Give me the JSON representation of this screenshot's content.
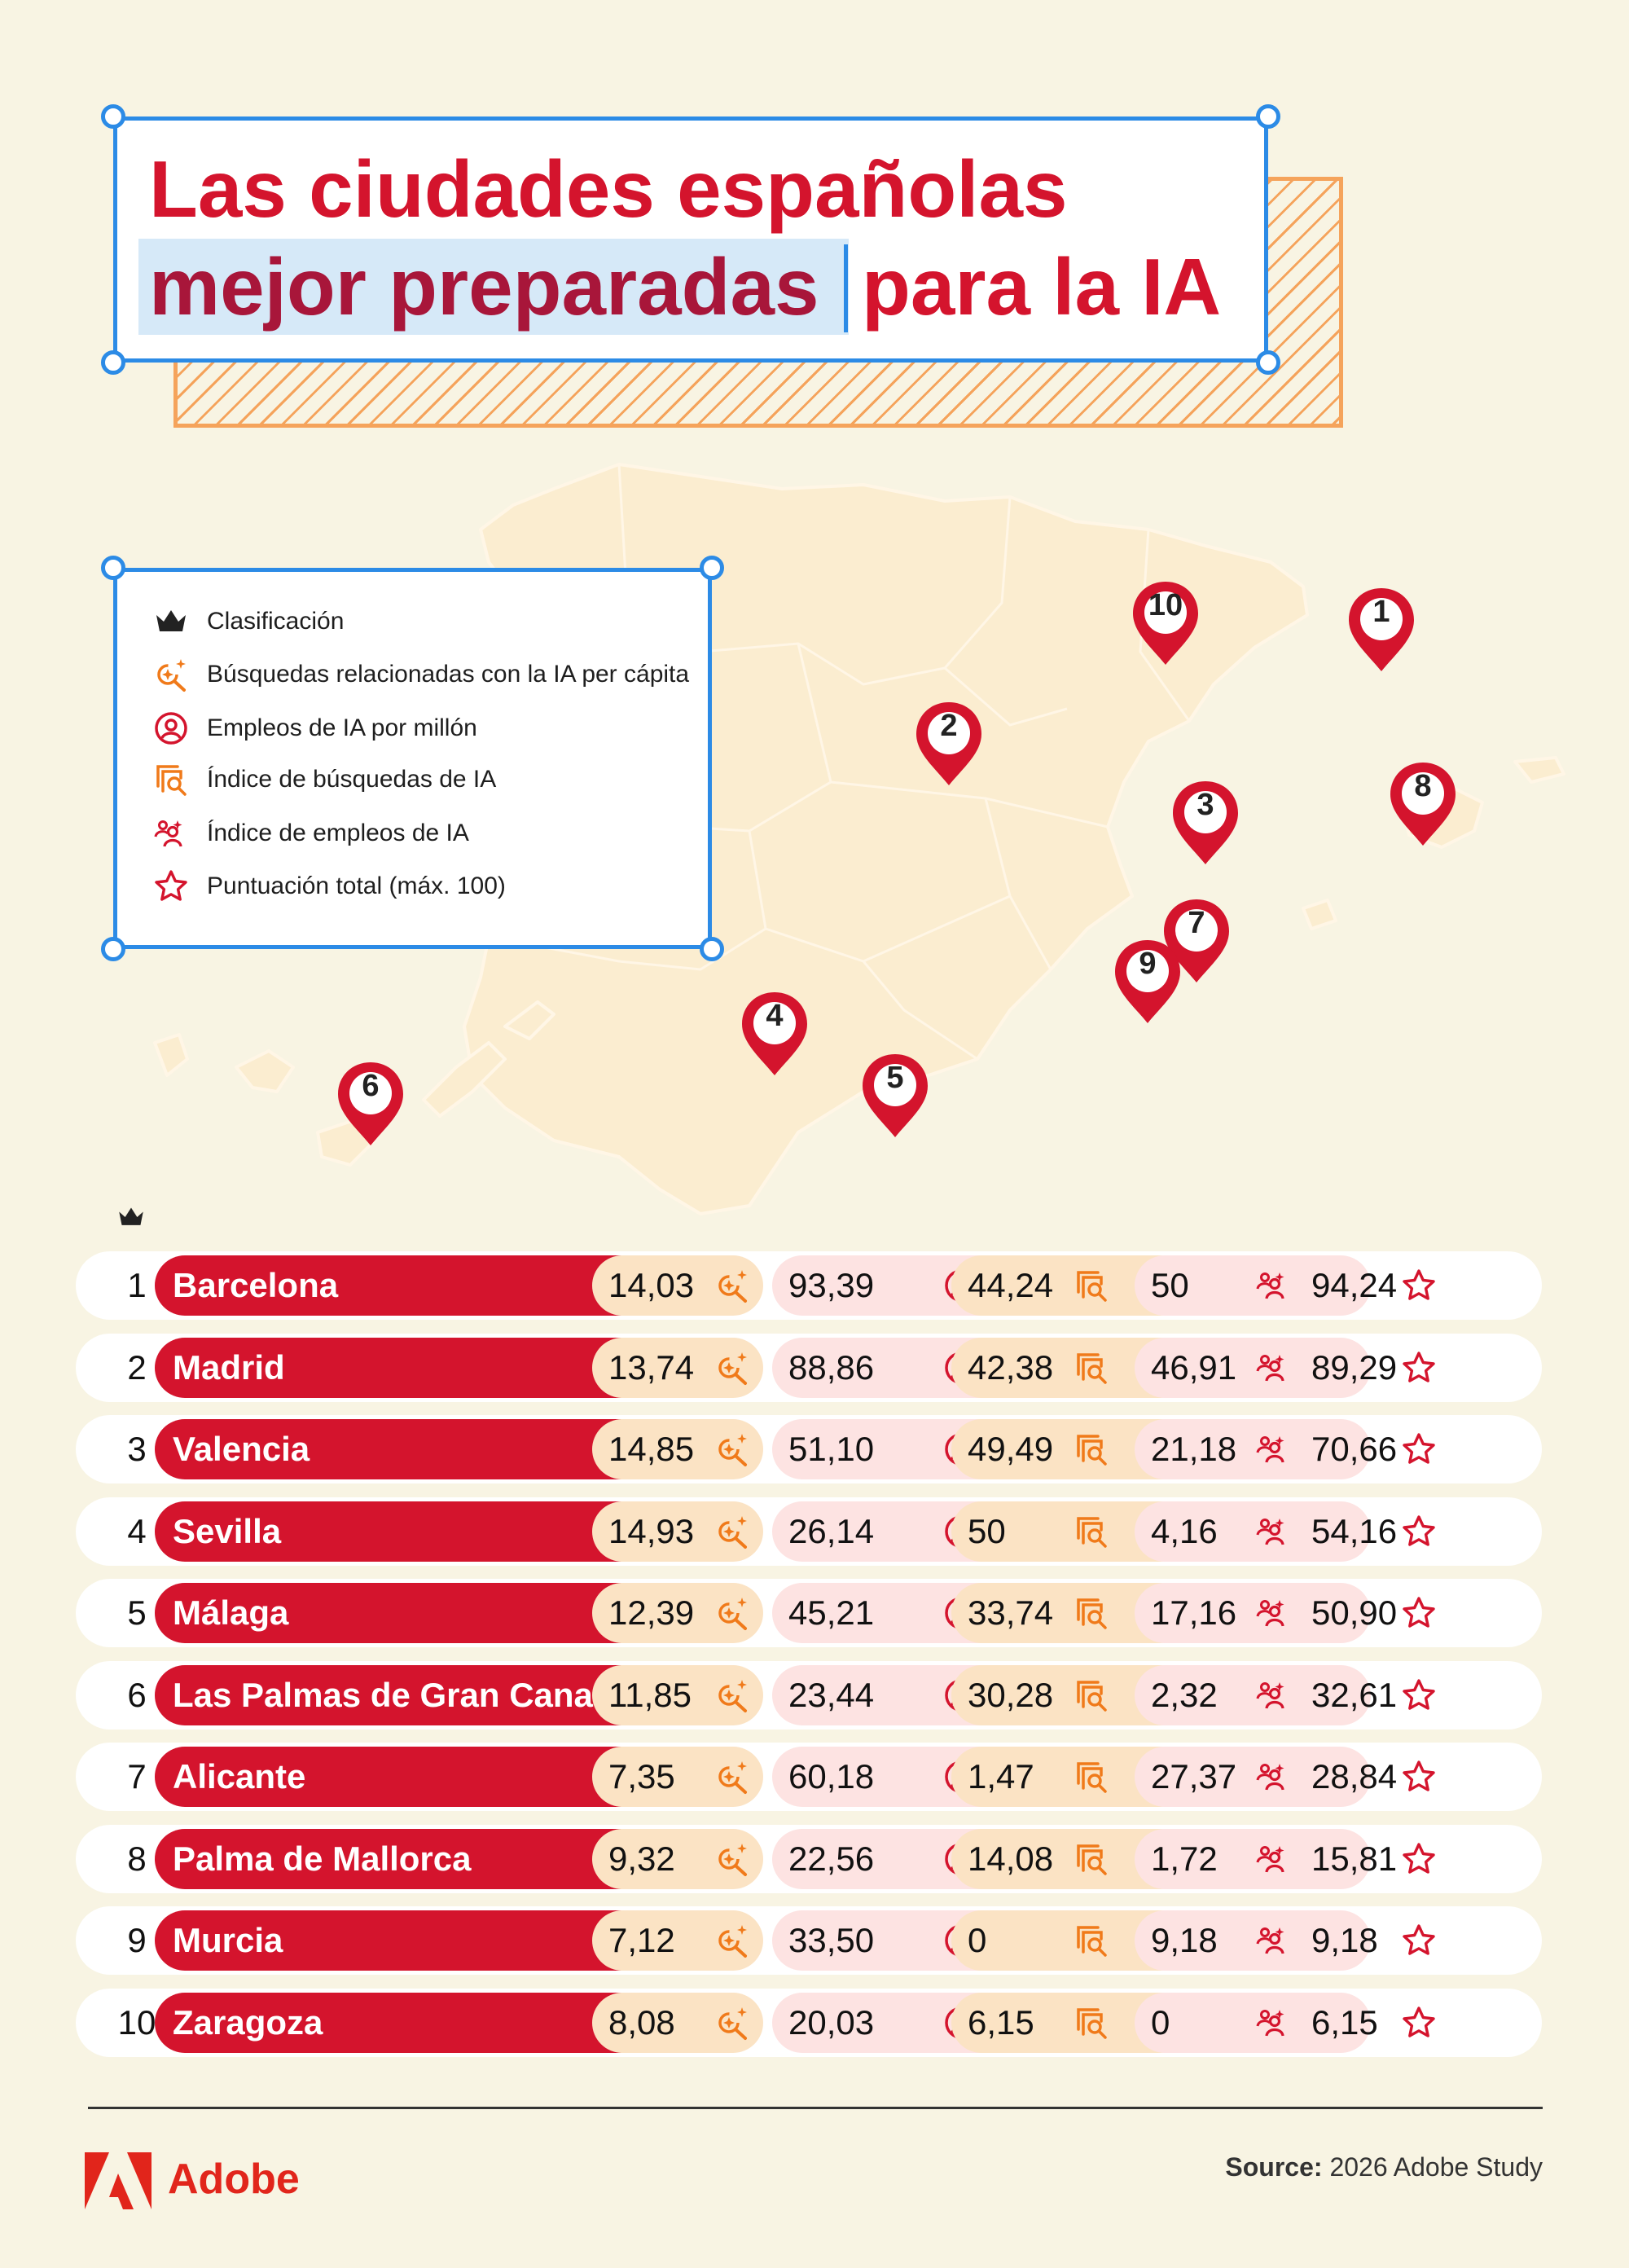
{
  "title": {
    "line1": "Las ciudades españolas",
    "line2_highlight": "mejor preparadas",
    "line2_rest": "para la IA"
  },
  "legend": {
    "items": [
      {
        "icon": "crown-icon",
        "label": "Clasificación"
      },
      {
        "icon": "search-sparkle-icon",
        "label": "Búsquedas relacionadas con la IA per cápita"
      },
      {
        "icon": "person-circle-icon",
        "label": "Empleos de IA por millón"
      },
      {
        "icon": "search-index-icon",
        "label": "Índice de búsquedas de IA"
      },
      {
        "icon": "people-index-icon",
        "label": "Índice de empleos de IA"
      },
      {
        "icon": "star-icon",
        "label": "Puntuación total (máx. 100)"
      }
    ]
  },
  "pins": [
    "1",
    "2",
    "3",
    "4",
    "5",
    "6",
    "7",
    "8",
    "9",
    "10"
  ],
  "colors": {
    "red": "#d4142d",
    "orange": "#f07a1a",
    "orange_cell": "#fbe3c4",
    "pink_cell": "#fde3e2",
    "blue": "#2c8be6"
  },
  "table": {
    "rows": [
      {
        "rank": "1",
        "city": "Barcelona",
        "searches": "14,03",
        "jobs": "93,39",
        "search_index": "44,24",
        "job_index": "50",
        "total": "94,24"
      },
      {
        "rank": "2",
        "city": "Madrid",
        "searches": "13,74",
        "jobs": "88,86",
        "search_index": "42,38",
        "job_index": "46,91",
        "total": "89,29"
      },
      {
        "rank": "3",
        "city": "Valencia",
        "searches": "14,85",
        "jobs": "51,10",
        "search_index": "49,49",
        "job_index": "21,18",
        "total": "70,66"
      },
      {
        "rank": "4",
        "city": "Sevilla",
        "searches": "14,93",
        "jobs": "26,14",
        "search_index": "50",
        "job_index": "4,16",
        "total": "54,16"
      },
      {
        "rank": "5",
        "city": "Málaga",
        "searches": "12,39",
        "jobs": "45,21",
        "search_index": "33,74",
        "job_index": "17,16",
        "total": "50,90"
      },
      {
        "rank": "6",
        "city": "Las Palmas de Gran Canaria",
        "searches": "11,85",
        "jobs": "23,44",
        "search_index": "30,28",
        "job_index": "2,32",
        "total": "32,61"
      },
      {
        "rank": "7",
        "city": "Alicante",
        "searches": "7,35",
        "jobs": "60,18",
        "search_index": "1,47",
        "job_index": "27,37",
        "total": "28,84"
      },
      {
        "rank": "8",
        "city": "Palma de Mallorca",
        "searches": "9,32",
        "jobs": "22,56",
        "search_index": "14,08",
        "job_index": "1,72",
        "total": "15,81"
      },
      {
        "rank": "9",
        "city": "Murcia",
        "searches": "7,12",
        "jobs": "33,50",
        "search_index": "0",
        "job_index": "9,18",
        "total": "9,18"
      },
      {
        "rank": "10",
        "city": "Zaragoza",
        "searches": "8,08",
        "jobs": "20,03",
        "search_index": "6,15",
        "job_index": "0",
        "total": "6,15"
      }
    ]
  },
  "footer": {
    "brand": "Adobe",
    "source_label": "Source:",
    "source_text": "2026 Adobe Study"
  }
}
